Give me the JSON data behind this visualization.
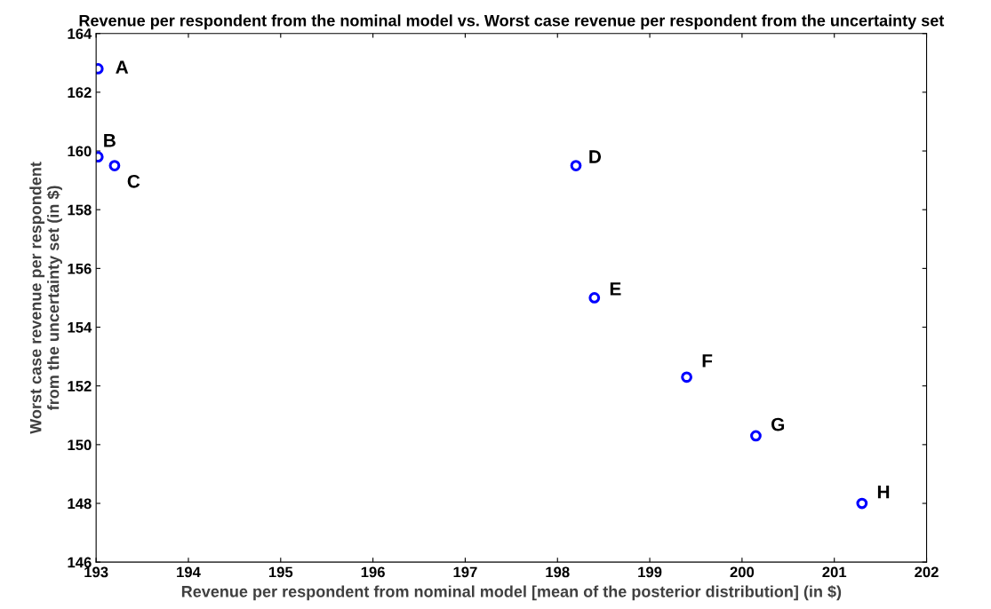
{
  "chart_data": {
    "type": "scatter",
    "title": "Revenue per respondent from the nominal model vs. Worst case revenue per respondent from the uncertainty set",
    "xlabel": "Revenue per respondent from nominal model [mean of the posterior distribution] (in $)",
    "ylabel": "Worst case revenue per respondent\nfrom the uncertainty set (in $)",
    "series": [
      {
        "color": "#0000ff",
        "x": [
          193.02,
          193.02,
          193.2,
          198.2,
          198.4,
          199.4,
          200.15,
          201.3
        ],
        "values": [
          162.8,
          159.8,
          159.5,
          159.5,
          155.0,
          152.3,
          150.3,
          148.0
        ]
      }
    ],
    "annotations": [
      {
        "text": "A",
        "x": 193.02,
        "y": 162.8
      },
      {
        "text": "B",
        "x": 193.02,
        "y": 159.8
      },
      {
        "text": "C",
        "x": 193.2,
        "y": 159.5
      },
      {
        "text": "D",
        "x": 198.2,
        "y": 159.5
      },
      {
        "text": "E",
        "x": 198.4,
        "y": 155.0
      },
      {
        "text": "F",
        "x": 199.4,
        "y": 152.3
      },
      {
        "text": "G",
        "x": 200.15,
        "y": 150.3
      },
      {
        "text": "H",
        "x": 201.3,
        "y": 148.0
      }
    ],
    "xlim": [
      193,
      202
    ],
    "xticks": [
      193,
      194,
      195,
      196,
      197,
      198,
      199,
      200,
      201,
      202
    ],
    "ylim": [
      146,
      164
    ],
    "yticks": [
      146,
      148,
      150,
      152,
      154,
      156,
      158,
      160,
      162,
      164
    ],
    "marker": "circle",
    "grid": false,
    "legend": false
  }
}
